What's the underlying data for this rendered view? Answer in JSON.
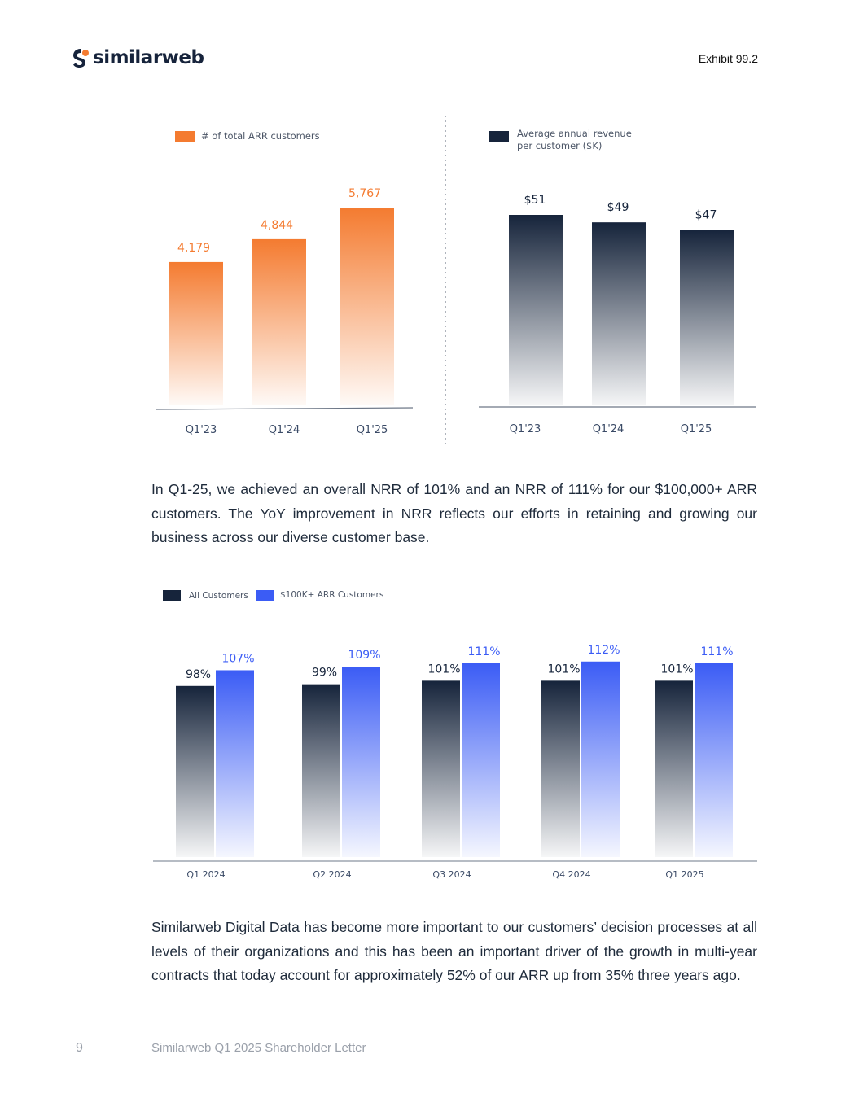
{
  "header": {
    "brand": "similarweb",
    "exhibit": "Exhibit 99.2"
  },
  "colors": {
    "orange": "#f47b30",
    "navy": "#16243b",
    "blue": "#3b5cf5",
    "axis": "#a8b0bb"
  },
  "chart_data": [
    {
      "type": "bar",
      "series": [
        {
          "name": "# of total ARR customers",
          "values": [
            4179,
            4844,
            5767
          ],
          "labels": [
            "4,179",
            "4,844",
            "5,767"
          ]
        }
      ],
      "categories": [
        "Q1'23",
        "Q1'24",
        "Q1'25"
      ]
    },
    {
      "type": "bar",
      "series": [
        {
          "name": "Average annual revenue per customer ($K)",
          "values": [
            51,
            49,
            47
          ],
          "labels": [
            "$51",
            "$49",
            "$47"
          ]
        }
      ],
      "categories": [
        "Q1'23",
        "Q1'24",
        "Q1'25"
      ]
    },
    {
      "type": "bar",
      "categories": [
        "Q1 2024",
        "Q2 2024",
        "Q3 2024",
        "Q4 2024",
        "Q1 2025"
      ],
      "series": [
        {
          "name": "All Customers",
          "values": [
            98,
            99,
            101,
            101,
            101
          ],
          "labels": [
            "98%",
            "99%",
            "101%",
            "101%",
            "101%"
          ]
        },
        {
          "name": "$100K+ ARR Customers",
          "values": [
            107,
            109,
            111,
            112,
            111
          ],
          "labels": [
            "107%",
            "109%",
            "111%",
            "112%",
            "111%"
          ]
        }
      ]
    }
  ],
  "paragraphs": [
    "In Q1-25, we achieved an overall NRR of 101% and an NRR of 111% for our $100,000+ ARR customers. The YoY improvement in NRR reflects our efforts in retaining and growing our business across our diverse customer base.",
    "Similarweb Digital Data has become more important to our customers’ decision processes at all levels of their organizations and this has been an important driver of the growth in multi-year contracts that today account for approximately 52% of our ARR up from 35% three years ago."
  ],
  "footer": {
    "page_number": "9",
    "doc_title": "Similarweb Q1 2025 Shareholder Letter"
  }
}
